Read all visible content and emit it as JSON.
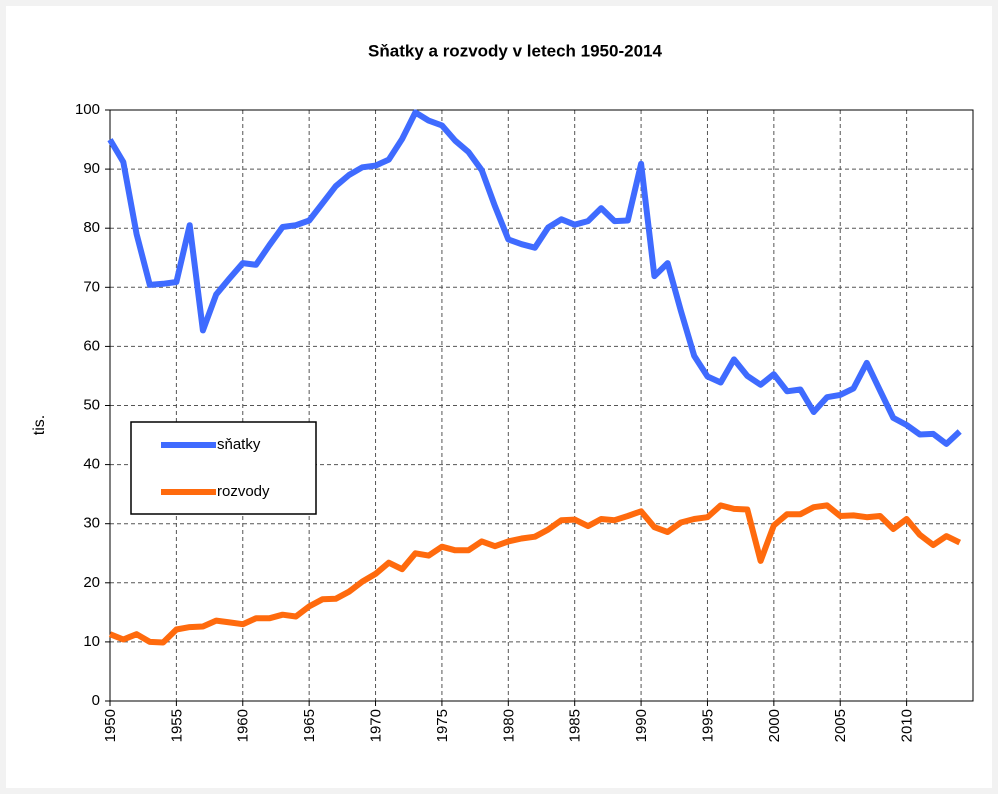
{
  "chart_data": {
    "type": "line",
    "title": "Sňatky a rozvody v letech 1950-2014",
    "ylabel": "tis.",
    "x": [
      1950,
      1951,
      1952,
      1953,
      1954,
      1955,
      1956,
      1957,
      1958,
      1959,
      1960,
      1961,
      1962,
      1963,
      1964,
      1965,
      1966,
      1967,
      1968,
      1969,
      1970,
      1971,
      1972,
      1973,
      1974,
      1975,
      1976,
      1977,
      1978,
      1979,
      1980,
      1981,
      1982,
      1983,
      1984,
      1985,
      1986,
      1987,
      1988,
      1989,
      1990,
      1991,
      1992,
      1993,
      1994,
      1995,
      1996,
      1997,
      1998,
      1999,
      2000,
      2001,
      2002,
      2003,
      2004,
      2005,
      2006,
      2007,
      2008,
      2009,
      2010,
      2011,
      2012,
      2013,
      2014
    ],
    "series": [
      {
        "name": "sňatky",
        "color": "#3f6bff",
        "values": [
          95.0,
          91.2,
          79.0,
          70.4,
          70.6,
          70.9,
          80.5,
          62.7,
          68.8,
          71.5,
          74.1,
          73.8,
          77.1,
          80.2,
          80.5,
          81.3,
          84.2,
          87.1,
          89.0,
          90.3,
          90.6,
          91.6,
          95.1,
          99.6,
          98.2,
          97.4,
          94.8,
          92.9,
          89.8,
          83.7,
          78.1,
          77.3,
          76.7,
          80.1,
          81.5,
          80.6,
          81.2,
          83.4,
          81.2,
          81.3,
          90.9,
          71.9,
          74.1,
          66.0,
          58.4,
          54.9,
          53.9,
          57.8,
          55.0,
          53.5,
          55.3,
          52.4,
          52.7,
          48.9,
          51.4,
          51.8,
          52.9,
          57.2,
          52.5,
          47.9,
          46.7,
          45.1,
          45.2,
          43.5,
          45.6
        ]
      },
      {
        "name": "rozvody",
        "color": "#ff6a0d",
        "values": [
          11.3,
          10.4,
          11.3,
          10.0,
          9.9,
          12.1,
          12.5,
          12.6,
          13.6,
          13.3,
          13.0,
          14.0,
          14.0,
          14.6,
          14.3,
          16.0,
          17.2,
          17.3,
          18.5,
          20.2,
          21.5,
          23.4,
          22.3,
          25.0,
          24.6,
          26.1,
          25.5,
          25.5,
          27.0,
          26.2,
          27.0,
          27.5,
          27.8,
          29.0,
          30.6,
          30.7,
          29.6,
          30.8,
          30.6,
          31.3,
          32.1,
          29.4,
          28.6,
          30.2,
          30.8,
          31.1,
          33.1,
          32.5,
          32.4,
          23.7,
          29.7,
          31.6,
          31.6,
          32.8,
          33.1,
          31.3,
          31.4,
          31.1,
          31.3,
          29.1,
          30.8,
          28.1,
          26.4,
          27.9,
          26.8
        ]
      }
    ],
    "xlim": [
      1950,
      2015
    ],
    "xticks": [
      1950,
      1955,
      1960,
      1965,
      1970,
      1975,
      1980,
      1985,
      1990,
      1995,
      2000,
      2005,
      2010
    ],
    "ylim": [
      0,
      100
    ],
    "yticks": [
      0,
      10,
      20,
      30,
      40,
      50,
      60,
      70,
      80,
      90,
      100
    ],
    "grid": true,
    "legend": "left"
  }
}
